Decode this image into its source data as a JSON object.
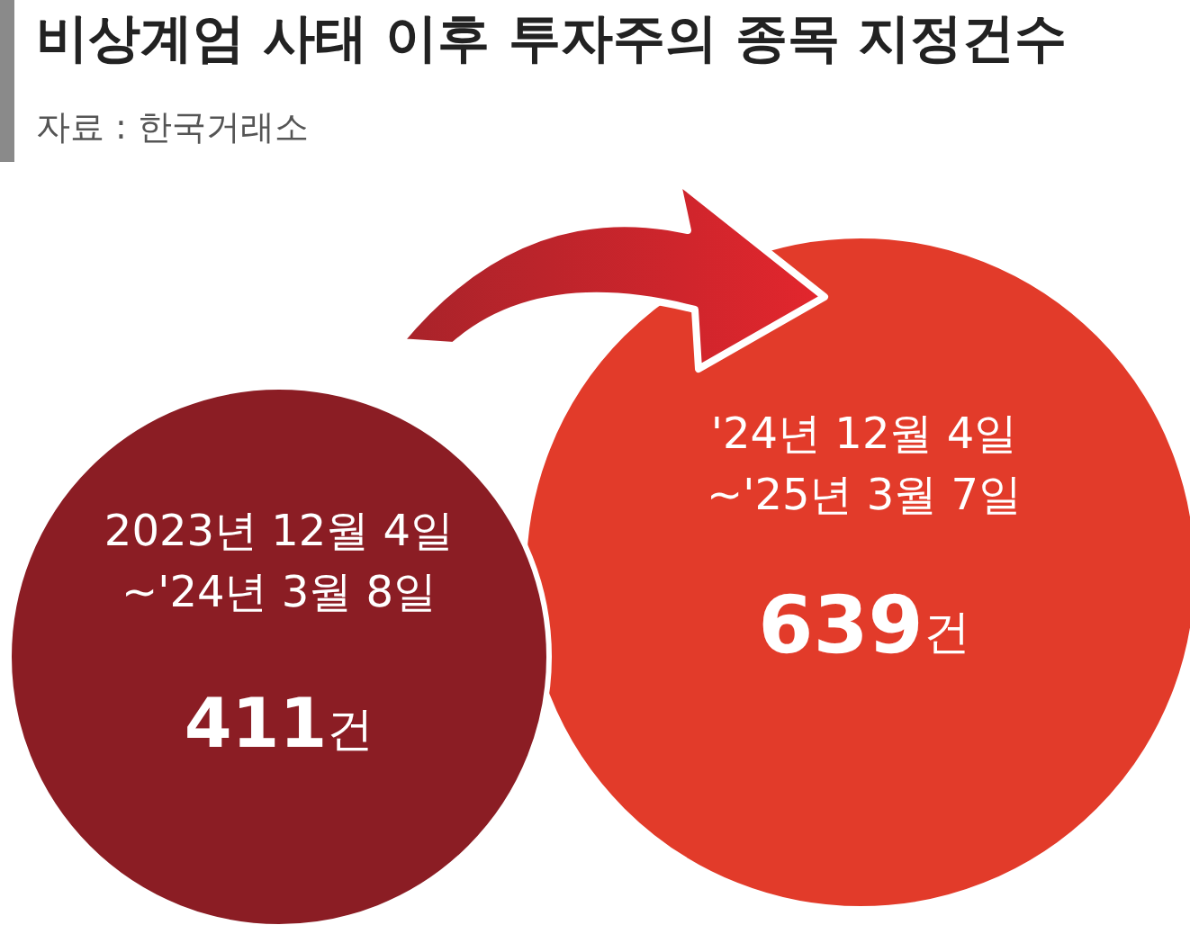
{
  "chart_data": {
    "type": "other",
    "title": "비상계엄 사태 이후 투자주의 종목 지정건수",
    "subtitle": "자료 : 한국거래소",
    "categories": [
      "2023년 12월 4일\n~'24년 3월 8일",
      "'24년 12월 4일\n~'25년 3월 7일"
    ],
    "values": [
      411,
      639
    ],
    "value_labels": [
      "411건",
      "639건"
    ],
    "colors": [
      "#8b1d24",
      "#e23b2a"
    ]
  }
}
